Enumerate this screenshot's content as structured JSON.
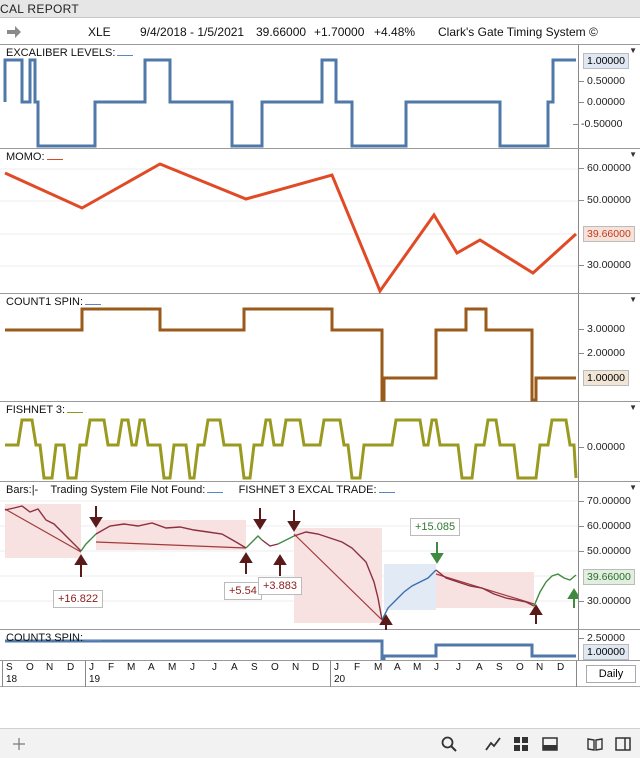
{
  "window": {
    "title": "CAL REPORT"
  },
  "header": {
    "symbol": "XLE",
    "date_range": "9/4/2018 - 1/5/2021",
    "price": "39.66000",
    "change": "+1.70000",
    "change_pct": "+4.48%",
    "system": "Clark's Gate Timing System ©"
  },
  "panels": {
    "excaliber": {
      "label": "EXCALIBER LEVELS:",
      "ticks": [
        "1.00000",
        "0.50000",
        "0.00000",
        "-0.50000"
      ],
      "color": "#4f79a8"
    },
    "momo": {
      "label": "MOMO:",
      "ticks": [
        "60.00000",
        "50.00000",
        "30.00000"
      ],
      "current": "39.66000",
      "color": "#e04a25"
    },
    "count1": {
      "label": "COUNT1 SPIN:",
      "ticks": [
        "3.00000",
        "2.00000"
      ],
      "current": "1.00000",
      "color": "#9a5a1a"
    },
    "fishnet": {
      "label": "FISHNET 3:",
      "ticks": [
        "0.00000"
      ],
      "color": "#9a9a20"
    },
    "bars": {
      "label_prefix": "Bars:",
      "label_bars_mark": "|-",
      "label_system": "Trading System File Not Found:",
      "label_trade": "FISHNET 3 EXCAL TRADE:",
      "ticks": [
        "70.00000",
        "60.00000",
        "50.00000",
        "30.00000"
      ],
      "current": "39.66000",
      "trades": [
        "+16.822",
        "+5.54",
        "+3.883",
        "+15.085"
      ]
    },
    "count3": {
      "label": "COUNT3 SPIN:",
      "ticks": [
        "2.50000"
      ],
      "current": "1.00000",
      "color": "#4f79a8"
    }
  },
  "timeaxis": {
    "months": [
      "S",
      "O",
      "N",
      "D",
      "J",
      "F",
      "M",
      "A",
      "M",
      "J",
      "J",
      "A",
      "S",
      "O",
      "N",
      "D",
      "J",
      "F",
      "M",
      "A",
      "M",
      "J",
      "J",
      "A",
      "S",
      "O",
      "N",
      "D"
    ],
    "years": [
      "18",
      "19",
      "20"
    ],
    "period": "Daily"
  },
  "bottom_icons": [
    "plus-icon",
    "search-icon",
    "chart-line-icon",
    "grid-icon",
    "panel-icon",
    "book-icon",
    "sidebar-icon"
  ]
}
